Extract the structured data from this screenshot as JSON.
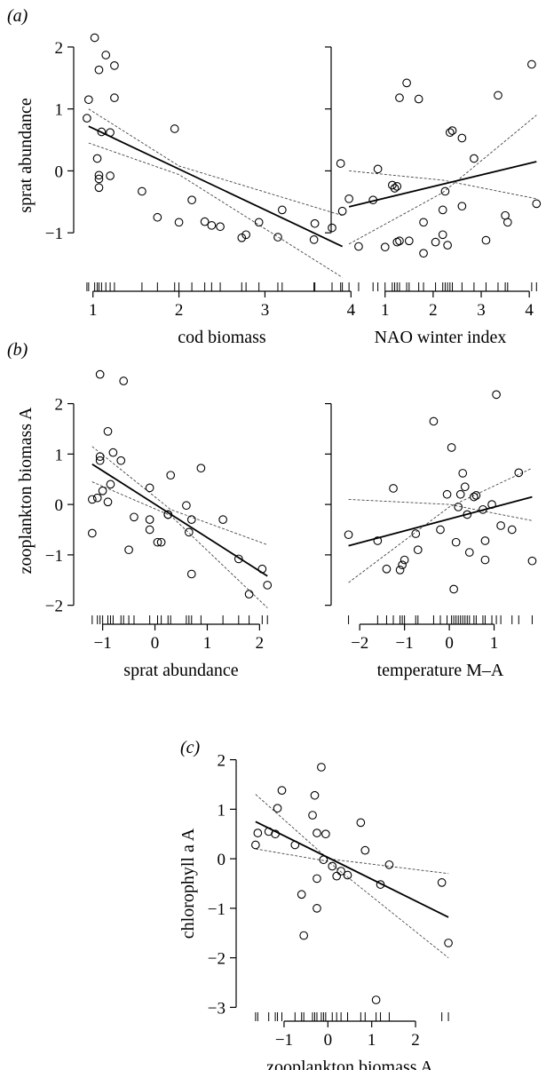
{
  "figure": {
    "panels": [
      {
        "letter": "(a)"
      },
      {
        "letter": "(b)"
      },
      {
        "letter": "(c)"
      }
    ]
  },
  "chart_data": [
    {
      "type": "scatter",
      "panel": "a",
      "xlabel": "cod biomass",
      "ylabel": "sprat abundance",
      "xlim": [
        0.9,
        4.1
      ],
      "ylim": [
        -1.8,
        2.3
      ],
      "xticks": [
        1,
        2,
        3,
        4
      ],
      "yticks": [
        -1,
        0,
        1,
        2
      ],
      "show_yticklabels": true,
      "points": [
        [
          0.95,
          1.15
        ],
        [
          0.93,
          0.85
        ],
        [
          1.02,
          2.15
        ],
        [
          1.07,
          1.63
        ],
        [
          1.15,
          1.87
        ],
        [
          1.25,
          1.7
        ],
        [
          1.05,
          0.2
        ],
        [
          1.07,
          -0.07
        ],
        [
          1.07,
          -0.13
        ],
        [
          1.07,
          -0.27
        ],
        [
          1.1,
          0.63
        ],
        [
          1.2,
          0.62
        ],
        [
          1.25,
          1.18
        ],
        [
          1.2,
          -0.08
        ],
        [
          1.57,
          -0.33
        ],
        [
          1.75,
          -0.75
        ],
        [
          1.95,
          0.68
        ],
        [
          2.0,
          -0.83
        ],
        [
          2.15,
          -0.47
        ],
        [
          2.3,
          -0.82
        ],
        [
          2.38,
          -0.88
        ],
        [
          2.48,
          -0.9
        ],
        [
          2.73,
          -1.08
        ],
        [
          2.78,
          -1.03
        ],
        [
          2.93,
          -0.83
        ],
        [
          3.15,
          -1.07
        ],
        [
          3.2,
          -0.63
        ],
        [
          3.57,
          -1.11
        ],
        [
          3.58,
          -0.85
        ],
        [
          3.78,
          -0.92
        ],
        [
          3.88,
          0.12
        ],
        [
          3.9,
          -0.65
        ]
      ],
      "fit": {
        "x": [
          0.95,
          3.9
        ],
        "y": [
          0.72,
          -1.22
        ]
      },
      "band_upper": {
        "x": [
          0.95,
          2.0,
          3.9
        ],
        "y": [
          1.0,
          0.08,
          -0.72
        ]
      },
      "band_lower": {
        "x": [
          0.95,
          2.0,
          3.9
        ],
        "y": [
          0.45,
          -0.06,
          -1.72
        ]
      },
      "rug": [
        0.93,
        0.95,
        1.02,
        1.05,
        1.07,
        1.1,
        1.15,
        1.2,
        1.25,
        1.57,
        1.75,
        1.95,
        2.0,
        2.15,
        2.3,
        2.38,
        2.48,
        2.73,
        2.78,
        2.93,
        3.15,
        3.2,
        3.57,
        3.58,
        3.78,
        3.88,
        3.9
      ]
    },
    {
      "type": "scatter",
      "panel": "a",
      "xlabel": "NAO winter index",
      "ylabel": "",
      "xlim": [
        0.1,
        4.2
      ],
      "ylim": [
        -1.8,
        2.3
      ],
      "xticks": [
        1,
        2,
        3,
        4
      ],
      "yticks": [
        -1,
        0,
        1,
        2
      ],
      "show_yticklabels": false,
      "points": [
        [
          0.25,
          -0.45
        ],
        [
          0.45,
          -1.22
        ],
        [
          0.75,
          -0.47
        ],
        [
          0.85,
          0.03
        ],
        [
          1.0,
          -1.23
        ],
        [
          1.15,
          -0.23
        ],
        [
          1.2,
          -0.28
        ],
        [
          1.25,
          -1.15
        ],
        [
          1.25,
          -0.25
        ],
        [
          1.3,
          -1.13
        ],
        [
          1.3,
          1.18
        ],
        [
          1.45,
          1.42
        ],
        [
          1.5,
          -1.13
        ],
        [
          1.7,
          1.16
        ],
        [
          1.8,
          -0.83
        ],
        [
          1.8,
          -1.33
        ],
        [
          2.05,
          -1.15
        ],
        [
          2.2,
          -0.63
        ],
        [
          2.2,
          -1.03
        ],
        [
          2.25,
          -0.33
        ],
        [
          2.3,
          -1.2
        ],
        [
          2.35,
          0.62
        ],
        [
          2.4,
          0.65
        ],
        [
          2.6,
          -0.57
        ],
        [
          2.6,
          0.53
        ],
        [
          2.85,
          0.2
        ],
        [
          3.1,
          -1.12
        ],
        [
          3.35,
          1.22
        ],
        [
          3.5,
          -0.72
        ],
        [
          3.55,
          -0.83
        ],
        [
          4.05,
          1.72
        ],
        [
          4.15,
          -0.53
        ]
      ],
      "fit": {
        "x": [
          0.25,
          4.15
        ],
        "y": [
          -0.58,
          0.15
        ]
      },
      "band_upper": {
        "x": [
          0.25,
          2.2,
          4.15
        ],
        "y": [
          0.0,
          -0.15,
          -0.45
        ]
      },
      "band_lower": {
        "x": [
          0.25,
          2.2,
          4.15
        ],
        "y": [
          -1.18,
          -0.35,
          0.9
        ]
      },
      "rug": [
        0.25,
        0.45,
        0.75,
        0.85,
        1.0,
        1.15,
        1.2,
        1.25,
        1.3,
        1.45,
        1.5,
        1.7,
        1.8,
        2.05,
        2.2,
        2.25,
        2.3,
        2.35,
        2.4,
        2.6,
        2.85,
        3.1,
        3.35,
        3.5,
        3.55,
        4.05,
        4.15
      ]
    },
    {
      "type": "scatter",
      "panel": "b",
      "xlabel": "sprat abundance",
      "ylabel": "zooplankton biomass A",
      "xlim": [
        -1.35,
        2.35
      ],
      "ylim": [
        -2.2,
        2.75
      ],
      "xticks": [
        -1,
        0,
        1,
        2
      ],
      "yticks": [
        -2,
        -1,
        0,
        1,
        2
      ],
      "show_yticklabels": true,
      "points": [
        [
          -1.05,
          2.58
        ],
        [
          -0.6,
          2.45
        ],
        [
          -0.9,
          1.45
        ],
        [
          -1.05,
          0.95
        ],
        [
          -1.05,
          0.87
        ],
        [
          -0.8,
          1.03
        ],
        [
          -0.65,
          0.87
        ],
        [
          -0.85,
          0.4
        ],
        [
          -1.0,
          0.27
        ],
        [
          -1.1,
          0.13
        ],
        [
          -1.2,
          0.1
        ],
        [
          -0.9,
          0.05
        ],
        [
          -1.2,
          -0.57
        ],
        [
          -0.4,
          -0.25
        ],
        [
          -0.5,
          -0.9
        ],
        [
          -0.1,
          0.33
        ],
        [
          -0.1,
          -0.3
        ],
        [
          -0.1,
          -0.5
        ],
        [
          0.05,
          -0.75
        ],
        [
          0.12,
          -0.75
        ],
        [
          0.25,
          -0.2
        ],
        [
          0.25,
          -0.2
        ],
        [
          0.3,
          0.58
        ],
        [
          0.6,
          -0.02
        ],
        [
          0.65,
          -0.55
        ],
        [
          0.7,
          -0.3
        ],
        [
          0.7,
          -1.38
        ],
        [
          0.88,
          0.72
        ],
        [
          1.3,
          -0.3
        ],
        [
          1.6,
          -1.08
        ],
        [
          1.8,
          -1.78
        ],
        [
          2.05,
          -1.28
        ],
        [
          2.15,
          -1.6
        ]
      ],
      "fit": {
        "x": [
          -1.2,
          2.15
        ],
        "y": [
          0.8,
          -1.42
        ]
      },
      "band_upper": {
        "x": [
          -1.2,
          0.3,
          2.15
        ],
        "y": [
          1.15,
          -0.1,
          -0.8
        ]
      },
      "band_lower": {
        "x": [
          -1.2,
          0.3,
          2.15
        ],
        "y": [
          0.45,
          -0.22,
          -2.05
        ]
      },
      "rug": [
        -1.2,
        -1.1,
        -1.05,
        -1.0,
        -0.9,
        -0.85,
        -0.8,
        -0.65,
        -0.6,
        -0.5,
        -0.4,
        -0.1,
        0.05,
        0.12,
        0.25,
        0.3,
        0.6,
        0.65,
        0.7,
        0.88,
        1.3,
        1.6,
        1.8,
        2.05,
        2.15
      ]
    },
    {
      "type": "scatter",
      "panel": "b",
      "xlabel": "temperature M–A",
      "ylabel": "",
      "xlim": [
        -2.4,
        2.0
      ],
      "ylim": [
        -2.2,
        2.75
      ],
      "xticks": [
        -2,
        -1,
        0,
        1
      ],
      "yticks": [
        -2,
        -1,
        0,
        1,
        2
      ],
      "show_yticklabels": false,
      "points": [
        [
          -2.25,
          -0.6
        ],
        [
          -1.6,
          -0.72
        ],
        [
          -1.4,
          -1.28
        ],
        [
          -1.25,
          0.32
        ],
        [
          -1.1,
          -1.3
        ],
        [
          -1.05,
          -1.2
        ],
        [
          -1.0,
          -1.1
        ],
        [
          -0.75,
          -0.58
        ],
        [
          -0.7,
          -0.9
        ],
        [
          -0.35,
          1.65
        ],
        [
          -0.2,
          -0.5
        ],
        [
          -0.05,
          0.2
        ],
        [
          0.05,
          1.13
        ],
        [
          0.1,
          -1.68
        ],
        [
          0.15,
          -0.75
        ],
        [
          0.2,
          -0.05
        ],
        [
          0.25,
          0.2
        ],
        [
          0.3,
          0.62
        ],
        [
          0.35,
          0.35
        ],
        [
          0.4,
          -0.2
        ],
        [
          0.45,
          -0.95
        ],
        [
          0.55,
          0.15
        ],
        [
          0.6,
          0.18
        ],
        [
          0.75,
          -0.1
        ],
        [
          0.8,
          -0.72
        ],
        [
          0.8,
          -1.1
        ],
        [
          0.95,
          0.0
        ],
        [
          1.05,
          2.18
        ],
        [
          1.15,
          -0.42
        ],
        [
          1.4,
          -0.5
        ],
        [
          1.55,
          0.63
        ],
        [
          1.85,
          -1.12
        ]
      ],
      "fit": {
        "x": [
          -2.25,
          1.85
        ],
        "y": [
          -0.82,
          0.15
        ]
      },
      "band_upper": {
        "x": [
          -2.25,
          0.0,
          1.85
        ],
        "y": [
          0.1,
          0.0,
          -0.32
        ]
      },
      "band_lower": {
        "x": [
          -2.25,
          0.0,
          1.85
        ],
        "y": [
          -1.55,
          -0.05,
          0.72
        ]
      },
      "rug": [
        -2.25,
        -1.6,
        -1.4,
        -1.25,
        -1.1,
        -1.05,
        -1.0,
        -0.75,
        -0.7,
        -0.35,
        -0.2,
        -0.05,
        0.05,
        0.1,
        0.15,
        0.2,
        0.25,
        0.3,
        0.35,
        0.4,
        0.45,
        0.55,
        0.6,
        0.75,
        0.8,
        0.95,
        1.05,
        1.15,
        1.4,
        1.55,
        1.85
      ]
    },
    {
      "type": "scatter",
      "panel": "c",
      "xlabel": "zooplankton biomass A",
      "ylabel": "chlorophyll a A",
      "xlim": [
        -1.85,
        2.85
      ],
      "ylim": [
        -3.1,
        2.1
      ],
      "xticks": [
        -1,
        0,
        1,
        2
      ],
      "yticks": [
        -3,
        -2,
        -1,
        0,
        1,
        2
      ],
      "show_yticklabels": true,
      "points": [
        [
          -1.65,
          0.28
        ],
        [
          -1.6,
          0.52
        ],
        [
          -1.35,
          0.55
        ],
        [
          -1.2,
          0.5
        ],
        [
          -1.15,
          1.02
        ],
        [
          -1.05,
          1.38
        ],
        [
          -0.75,
          0.28
        ],
        [
          -0.6,
          -0.72
        ],
        [
          -0.55,
          -1.55
        ],
        [
          -0.35,
          0.88
        ],
        [
          -0.3,
          1.28
        ],
        [
          -0.25,
          0.52
        ],
        [
          -0.25,
          -0.4
        ],
        [
          -0.25,
          -1.0
        ],
        [
          -0.15,
          1.85
        ],
        [
          -0.1,
          -0.02
        ],
        [
          -0.05,
          0.5
        ],
        [
          0.1,
          -0.15
        ],
        [
          0.2,
          -0.35
        ],
        [
          0.3,
          -0.25
        ],
        [
          0.45,
          -0.33
        ],
        [
          0.75,
          0.73
        ],
        [
          0.85,
          0.17
        ],
        [
          1.1,
          -2.85
        ],
        [
          1.2,
          -0.52
        ],
        [
          1.4,
          -0.12
        ],
        [
          2.6,
          -0.48
        ],
        [
          2.75,
          -1.7
        ]
      ],
      "fit": {
        "x": [
          -1.65,
          2.75
        ],
        "y": [
          0.75,
          -1.18
        ]
      },
      "band_upper": {
        "x": [
          -1.65,
          0.0,
          2.75
        ],
        "y": [
          1.3,
          0.0,
          -0.3
        ]
      },
      "band_lower": {
        "x": [
          -1.65,
          0.0,
          2.75
        ],
        "y": [
          0.2,
          -0.05,
          -2.0
        ]
      },
      "rug": [
        -1.65,
        -1.6,
        -1.35,
        -1.2,
        -1.15,
        -1.05,
        -0.75,
        -0.6,
        -0.55,
        -0.35,
        -0.3,
        -0.25,
        -0.15,
        -0.1,
        -0.05,
        0.1,
        0.2,
        0.3,
        0.45,
        0.75,
        0.85,
        1.1,
        1.2,
        1.4,
        2.6,
        2.75
      ]
    }
  ]
}
